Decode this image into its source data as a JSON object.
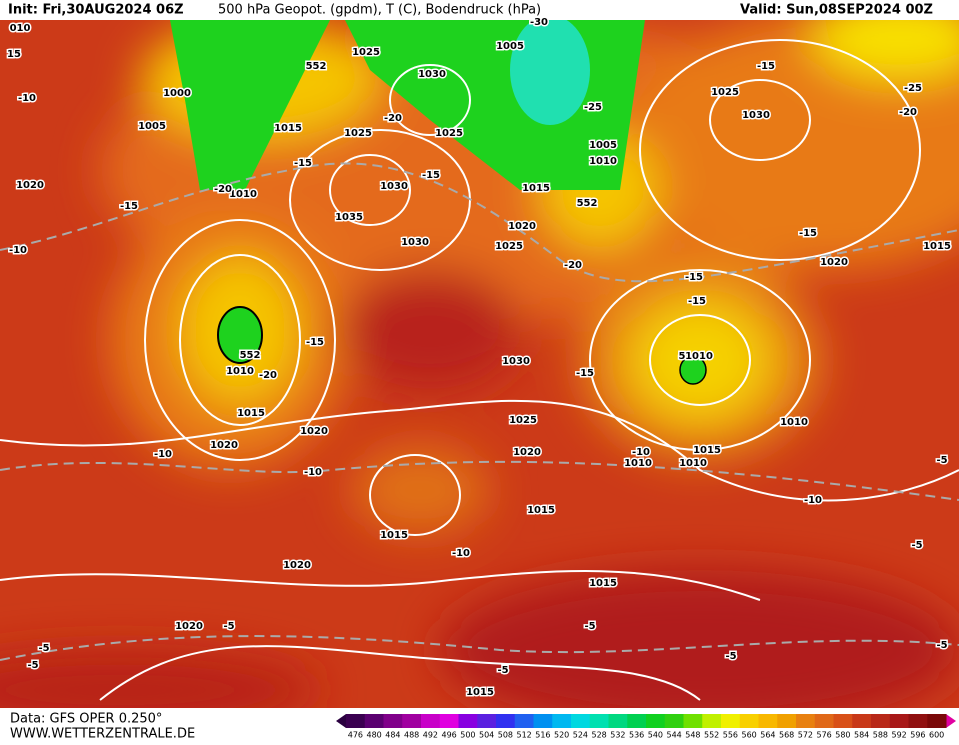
{
  "header": {
    "init": "Init: Fri,30AUG2024 06Z",
    "title": "500 hPa Geopot. (gpdm), T (C), Bodendruck (hPa)",
    "valid": "Valid: Sun,08SEP2024 00Z"
  },
  "footer": {
    "data": "Data: GFS OPER 0.250°",
    "site": "WWW.WETTERZENTRALE.DE"
  },
  "scale": {
    "labels": [
      476,
      480,
      484,
      488,
      492,
      496,
      500,
      504,
      508,
      512,
      516,
      520,
      524,
      528,
      532,
      536,
      540,
      544,
      548,
      552,
      556,
      560,
      564,
      568,
      572,
      576,
      580,
      584,
      588,
      592,
      596,
      600
    ],
    "colors": [
      "#3a0050",
      "#5a0070",
      "#80008a",
      "#a000a0",
      "#c800c8",
      "#e000e0",
      "#8800e0",
      "#5a20e0",
      "#3030f0",
      "#2060f0",
      "#0090f0",
      "#00b8f0",
      "#00d8e0",
      "#00e0b0",
      "#00d880",
      "#00d050",
      "#10d020",
      "#30d010",
      "#70e000",
      "#c0f000",
      "#f0f000",
      "#f8d000",
      "#f8b800",
      "#f0a000",
      "#e88010",
      "#e06818",
      "#d85018",
      "#c83818",
      "#b82818",
      "#a81818",
      "#901010",
      "#7a0808"
    ]
  },
  "map": {
    "pressure_labels": [
      "010",
      "15",
      "1000",
      "1005",
      "1020",
      "1010",
      "1015",
      "1025",
      "1030",
      "1025",
      "1025",
      "1030",
      "1035",
      "1030",
      "1005",
      "1005",
      "1010",
      "1015",
      "1020",
      "1025",
      "1030",
      "1025",
      "1020",
      "1015",
      "1025",
      "1030",
      "1020",
      "1015",
      "1010",
      "1010",
      "1015",
      "1010",
      "1010",
      "1010",
      "1015",
      "1020",
      "1020",
      "1015",
      "1020",
      "1020",
      "1015",
      "1015"
    ],
    "temperature_labels": [
      "-10",
      "-15",
      "-10",
      "-15",
      "-20",
      "-15",
      "-20",
      "-25",
      "-30",
      "-15",
      "-25",
      "-20",
      "-15",
      "-15",
      "-15",
      "-15",
      "-20",
      "-15",
      "-10",
      "-10",
      "-10",
      "-10",
      "-10",
      "-5",
      "-5",
      "-5",
      "-5",
      "-5",
      "-5",
      "-5",
      "-5",
      "-5",
      "-20"
    ],
    "geopotential_labels": [
      "552",
      "552",
      "552",
      "5"
    ]
  }
}
